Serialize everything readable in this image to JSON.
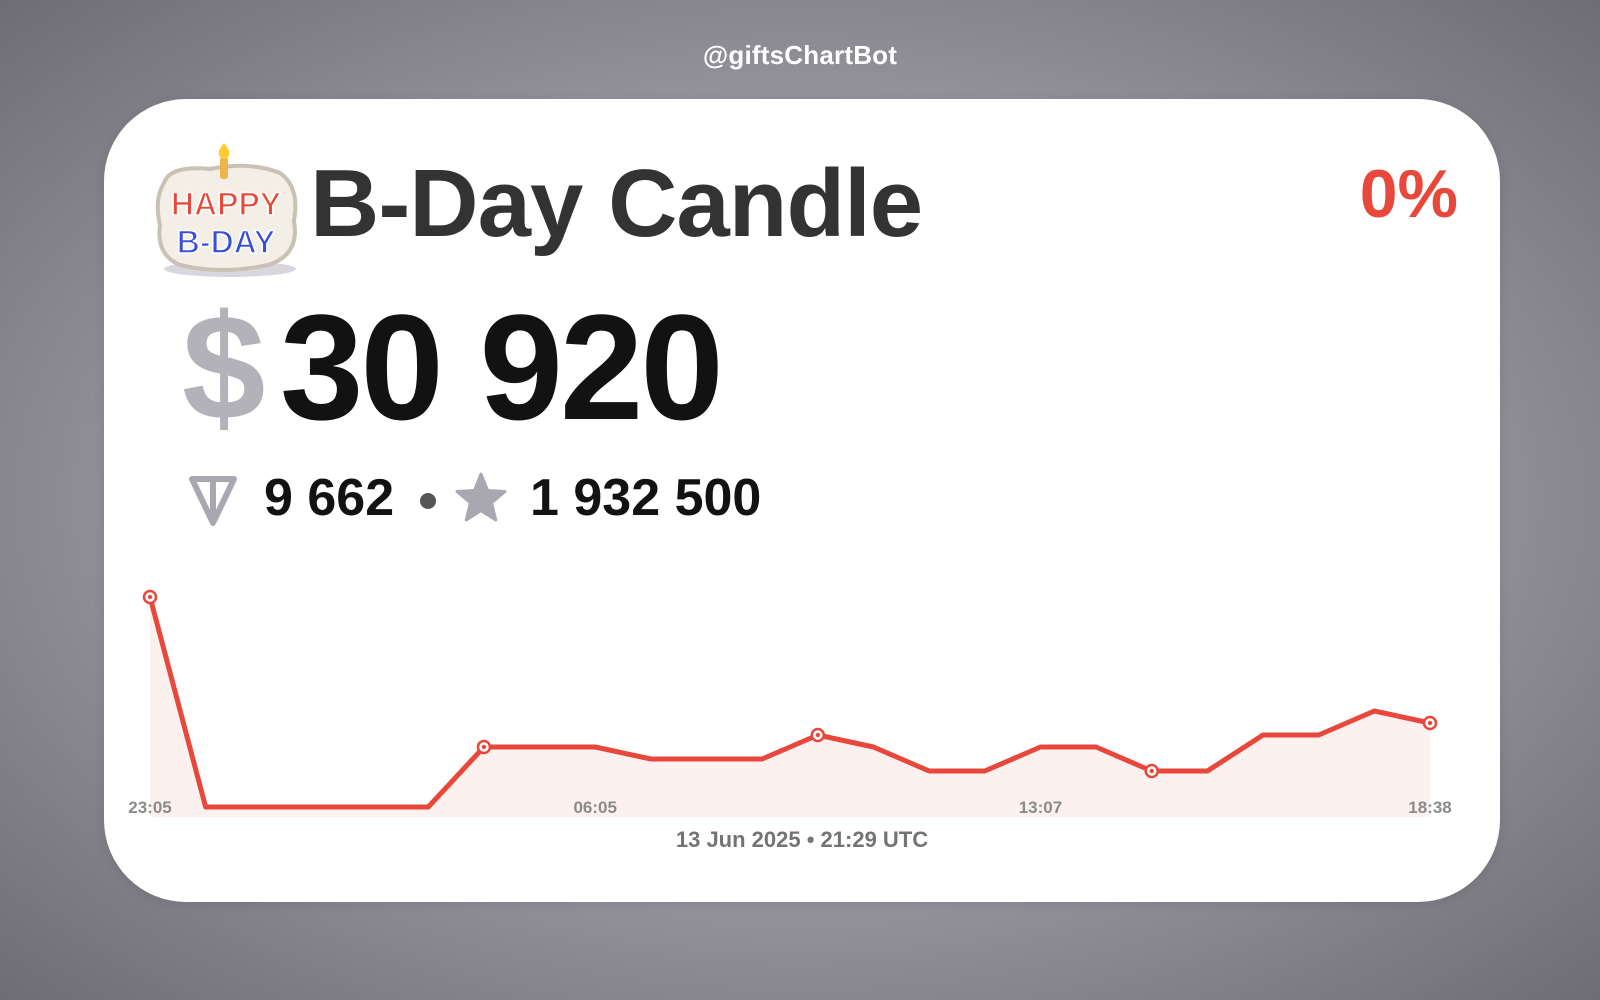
{
  "brand": "@giftsChartBot",
  "gift": {
    "name": "B-Day Candle",
    "icon": "happy-bday-candle-cake-icon",
    "icon_text_top": "HAPPY",
    "icon_text_bottom": "B-DAY"
  },
  "change": "0%",
  "price": {
    "usd_symbol": "$",
    "usd": "30 920",
    "ton": "9 662",
    "ton_icon": "ton-icon",
    "stars": "1 932 500",
    "stars_icon": "star-icon"
  },
  "footer": "13 Jun 2025 • 21:29 UTC",
  "colors": {
    "accent": "#e8483b",
    "line": "#e8483b",
    "fill": "#fdf1f0",
    "title": "#333333",
    "muted": "#b3b2b9"
  },
  "chart_data": {
    "type": "area",
    "x_tick_labels": [
      "23:05",
      "06:05",
      "13:07",
      "18:38"
    ],
    "x_tick_indices": [
      0,
      8,
      16,
      23
    ],
    "values": [
      35,
      0,
      0,
      0,
      0,
      0,
      10,
      10,
      10,
      8,
      8,
      8,
      12,
      10,
      6,
      6,
      10,
      10,
      6,
      6,
      12,
      12,
      16,
      14
    ],
    "marked_points": [
      0,
      6,
      12,
      18,
      23
    ],
    "ylim": [
      0,
      35
    ],
    "grid": false,
    "legend": "none"
  }
}
